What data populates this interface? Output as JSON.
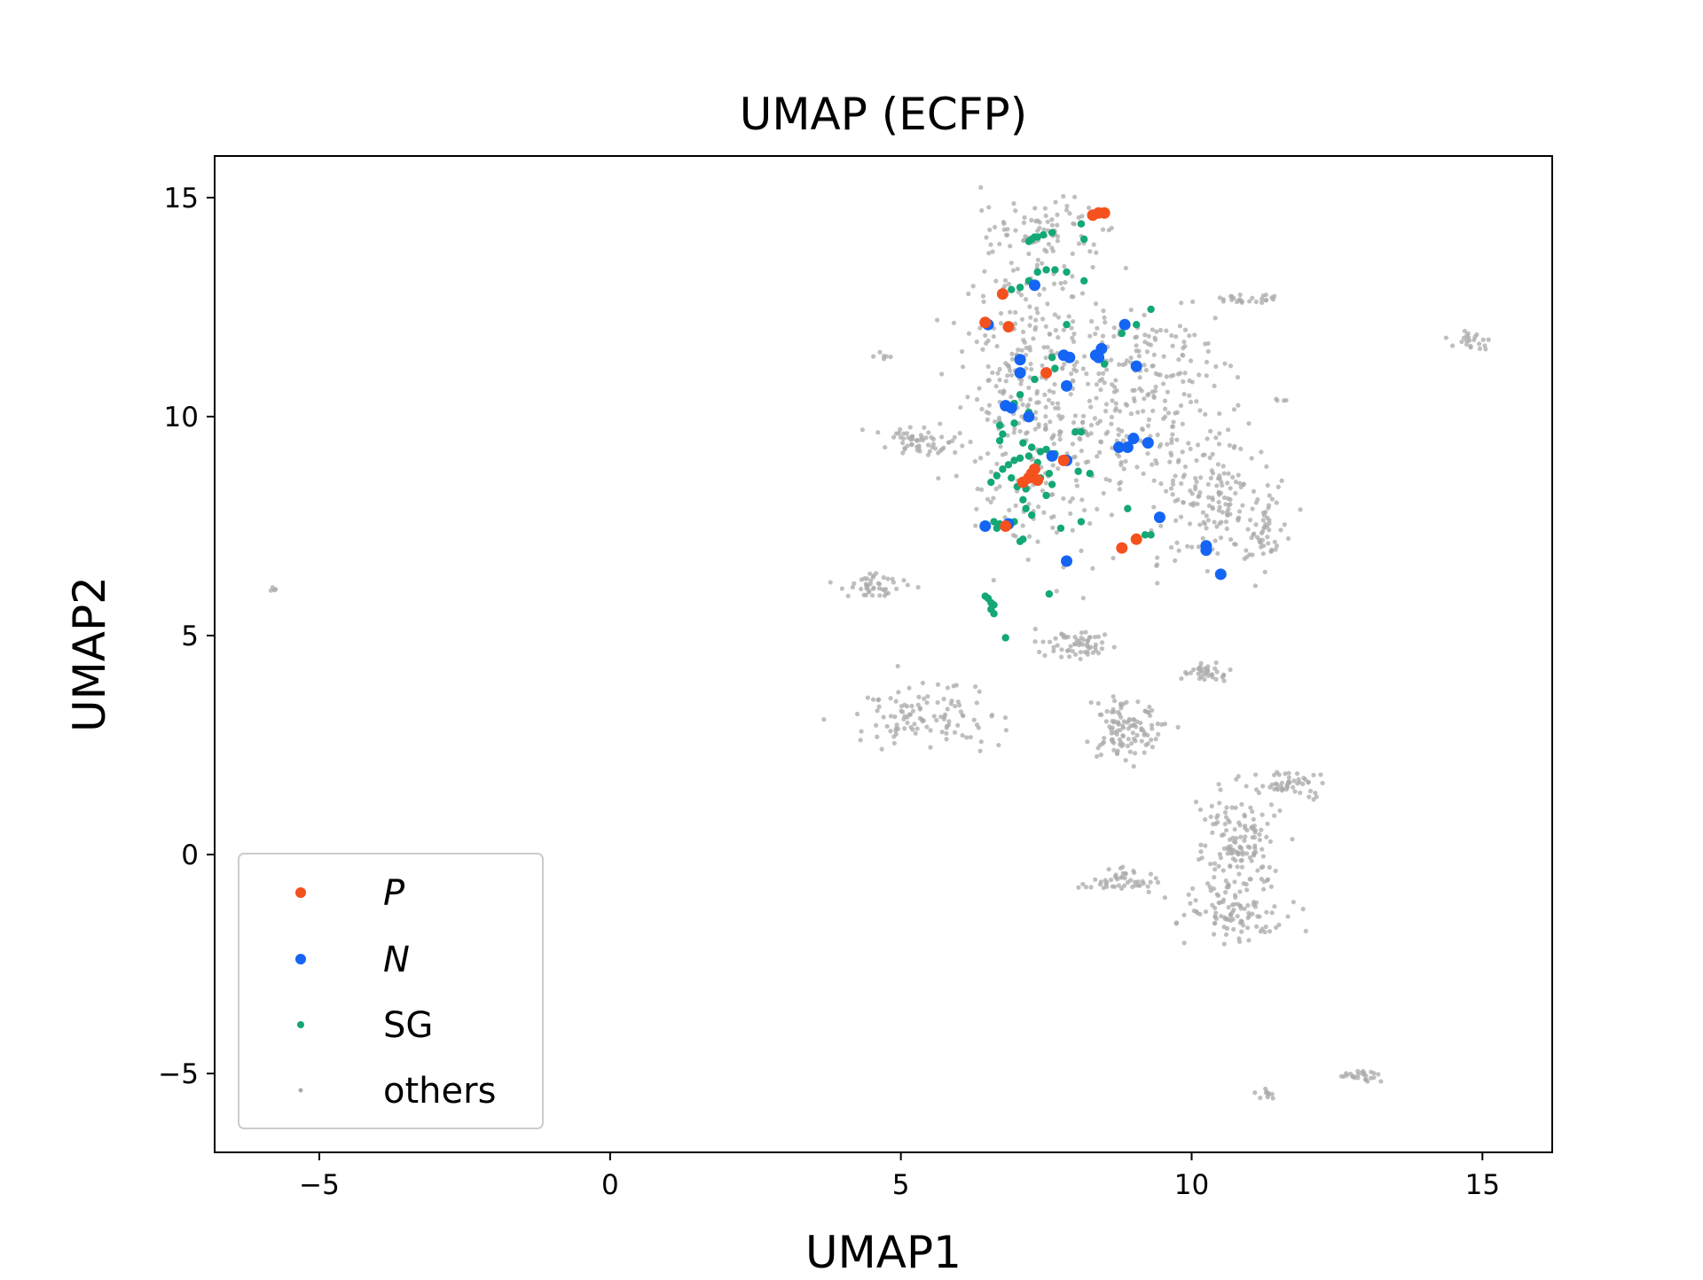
{
  "chart_data": {
    "type": "scatter",
    "title": "UMAP (ECFP)",
    "xlabel": "UMAP1",
    "ylabel": "UMAP2",
    "xlim": [
      -6.8,
      16.2
    ],
    "ylim": [
      -6.8,
      15.95
    ],
    "xticks": [
      -5,
      0,
      5,
      10,
      15
    ],
    "yticks": [
      -5,
      0,
      5,
      10,
      15
    ],
    "xtick_labels": [
      "−5",
      "0",
      "5",
      "10",
      "15"
    ],
    "ytick_labels": [
      "−5",
      "0",
      "5",
      "10",
      "15"
    ],
    "grid": false,
    "legend_position": "lower-left",
    "series": [
      {
        "name": "P",
        "color": "#f4511e",
        "points": [
          [
            8.3,
            14.6
          ],
          [
            8.4,
            14.65
          ],
          [
            8.5,
            14.65
          ],
          [
            6.75,
            12.8
          ],
          [
            6.45,
            12.15
          ],
          [
            6.85,
            12.05
          ],
          [
            7.5,
            11.0
          ],
          [
            7.3,
            8.8
          ],
          [
            7.2,
            8.6
          ],
          [
            7.1,
            8.5
          ],
          [
            7.35,
            8.55
          ],
          [
            7.25,
            8.7
          ],
          [
            7.8,
            9.0
          ],
          [
            6.8,
            7.5
          ],
          [
            8.8,
            7.0
          ],
          [
            9.05,
            7.2
          ]
        ]
      },
      {
        "name": "N",
        "color": "#1565f5",
        "points": [
          [
            7.3,
            13.0
          ],
          [
            6.5,
            12.1
          ],
          [
            7.05,
            11.3
          ],
          [
            7.05,
            11.0
          ],
          [
            7.8,
            11.4
          ],
          [
            7.9,
            11.35
          ],
          [
            8.35,
            11.4
          ],
          [
            8.45,
            11.55
          ],
          [
            8.4,
            11.35
          ],
          [
            9.05,
            11.15
          ],
          [
            7.85,
            10.7
          ],
          [
            8.85,
            12.1
          ],
          [
            6.8,
            10.25
          ],
          [
            6.9,
            10.2
          ],
          [
            7.2,
            10.0
          ],
          [
            8.75,
            9.3
          ],
          [
            8.9,
            9.3
          ],
          [
            9.0,
            9.5
          ],
          [
            9.25,
            9.4
          ],
          [
            7.6,
            9.1
          ],
          [
            7.85,
            9.0
          ],
          [
            6.45,
            7.5
          ],
          [
            6.85,
            7.55
          ],
          [
            9.45,
            7.7
          ],
          [
            10.25,
            7.05
          ],
          [
            10.25,
            6.95
          ],
          [
            7.85,
            6.7
          ],
          [
            10.5,
            6.4
          ]
        ]
      },
      {
        "name": "SG",
        "color": "#13a874",
        "points": [
          [
            8.1,
            14.4
          ],
          [
            8.15,
            14.05
          ],
          [
            7.6,
            14.2
          ],
          [
            7.45,
            14.15
          ],
          [
            7.3,
            14.1
          ],
          [
            7.2,
            14.0
          ],
          [
            7.25,
            14.05
          ],
          [
            7.35,
            14.1
          ],
          [
            7.2,
            13.1
          ],
          [
            7.35,
            13.3
          ],
          [
            7.5,
            13.35
          ],
          [
            7.65,
            13.35
          ],
          [
            7.85,
            13.3
          ],
          [
            8.15,
            13.1
          ],
          [
            7.05,
            12.95
          ],
          [
            6.9,
            12.9
          ],
          [
            9.3,
            12.45
          ],
          [
            9.05,
            12.1
          ],
          [
            8.8,
            11.9
          ],
          [
            7.85,
            12.1
          ],
          [
            8.5,
            11.2
          ],
          [
            7.6,
            11.35
          ],
          [
            7.65,
            11.1
          ],
          [
            7.3,
            10.85
          ],
          [
            7.05,
            10.5
          ],
          [
            6.95,
            10.3
          ],
          [
            7.2,
            10.1
          ],
          [
            6.95,
            9.85
          ],
          [
            6.7,
            9.8
          ],
          [
            6.75,
            9.6
          ],
          [
            6.7,
            9.45
          ],
          [
            7.1,
            9.4
          ],
          [
            7.25,
            9.3
          ],
          [
            7.4,
            9.2
          ],
          [
            7.5,
            9.25
          ],
          [
            7.65,
            9.15
          ],
          [
            7.2,
            9.1
          ],
          [
            7.05,
            9.05
          ],
          [
            6.95,
            9.0
          ],
          [
            6.85,
            8.9
          ],
          [
            6.75,
            8.8
          ],
          [
            6.65,
            8.65
          ],
          [
            6.55,
            8.5
          ],
          [
            6.9,
            8.6
          ],
          [
            7.0,
            8.4
          ],
          [
            7.15,
            8.35
          ],
          [
            7.4,
            8.6
          ],
          [
            7.55,
            8.7
          ],
          [
            7.6,
            8.45
          ],
          [
            7.5,
            8.2
          ],
          [
            7.35,
            8.95
          ],
          [
            8.0,
            9.65
          ],
          [
            8.1,
            9.65
          ],
          [
            8.25,
            8.7
          ],
          [
            8.05,
            8.75
          ],
          [
            7.1,
            8.1
          ],
          [
            7.15,
            7.9
          ],
          [
            7.25,
            7.75
          ],
          [
            6.95,
            7.6
          ],
          [
            6.6,
            7.6
          ],
          [
            6.65,
            7.45
          ],
          [
            6.7,
            7.55
          ],
          [
            7.1,
            7.2
          ],
          [
            7.05,
            7.15
          ],
          [
            7.75,
            7.45
          ],
          [
            8.1,
            7.6
          ],
          [
            8.9,
            7.9
          ],
          [
            9.2,
            7.3
          ],
          [
            9.3,
            7.3
          ],
          [
            7.55,
            5.95
          ],
          [
            6.45,
            5.9
          ],
          [
            6.5,
            5.85
          ],
          [
            6.55,
            5.75
          ],
          [
            6.6,
            5.7
          ],
          [
            6.55,
            5.6
          ],
          [
            6.6,
            5.5
          ],
          [
            6.8,
            4.95
          ]
        ]
      },
      {
        "name": "others",
        "color": "#aaaaaa",
        "clusters": [
          {
            "cx": 7.3,
            "cy": 10.5,
            "sx": 0.9,
            "sy": 2.6,
            "n": 360
          },
          {
            "cx": 9.3,
            "cy": 10.4,
            "sx": 0.95,
            "sy": 1.6,
            "n": 240
          },
          {
            "cx": 10.4,
            "cy": 8.0,
            "sx": 0.8,
            "sy": 1.0,
            "n": 150
          },
          {
            "cx": 11.3,
            "cy": 7.4,
            "sx": 0.25,
            "sy": 0.6,
            "n": 40
          },
          {
            "cx": 7.6,
            "cy": 14.3,
            "sx": 0.7,
            "sy": 0.4,
            "n": 60
          },
          {
            "cx": 11.0,
            "cy": 12.7,
            "sx": 0.4,
            "sy": 0.08,
            "n": 25
          },
          {
            "cx": 14.8,
            "cy": 11.75,
            "sx": 0.25,
            "sy": 0.15,
            "n": 22
          },
          {
            "cx": 5.3,
            "cy": 9.4,
            "sx": 0.55,
            "sy": 0.25,
            "n": 60
          },
          {
            "cx": 4.5,
            "cy": 6.15,
            "sx": 0.4,
            "sy": 0.2,
            "n": 45
          },
          {
            "cx": 5.4,
            "cy": 3.2,
            "sx": 0.9,
            "sy": 0.55,
            "n": 110
          },
          {
            "cx": 8.0,
            "cy": 4.8,
            "sx": 0.5,
            "sy": 0.25,
            "n": 60
          },
          {
            "cx": 8.9,
            "cy": 2.9,
            "sx": 0.45,
            "sy": 0.5,
            "n": 110
          },
          {
            "cx": 10.2,
            "cy": 4.15,
            "sx": 0.3,
            "sy": 0.15,
            "n": 35
          },
          {
            "cx": 10.8,
            "cy": 0.3,
            "sx": 0.5,
            "sy": 0.9,
            "n": 150
          },
          {
            "cx": 11.7,
            "cy": 1.6,
            "sx": 0.4,
            "sy": 0.25,
            "n": 50
          },
          {
            "cx": 8.8,
            "cy": -0.6,
            "sx": 0.45,
            "sy": 0.18,
            "n": 50
          },
          {
            "cx": 10.7,
            "cy": -1.4,
            "sx": 0.6,
            "sy": 0.4,
            "n": 90
          },
          {
            "cx": 12.9,
            "cy": -5.05,
            "sx": 0.25,
            "sy": 0.1,
            "n": 25
          },
          {
            "cx": 11.3,
            "cy": -5.5,
            "sx": 0.15,
            "sy": 0.1,
            "n": 10
          },
          {
            "cx": -5.8,
            "cy": 6.05,
            "sx": 0.05,
            "sy": 0.05,
            "n": 4
          },
          {
            "cx": 4.7,
            "cy": 11.4,
            "sx": 0.15,
            "sy": 0.1,
            "n": 6
          },
          {
            "cx": 11.5,
            "cy": 10.4,
            "sx": 0.1,
            "sy": 0.05,
            "n": 4
          }
        ]
      }
    ]
  }
}
